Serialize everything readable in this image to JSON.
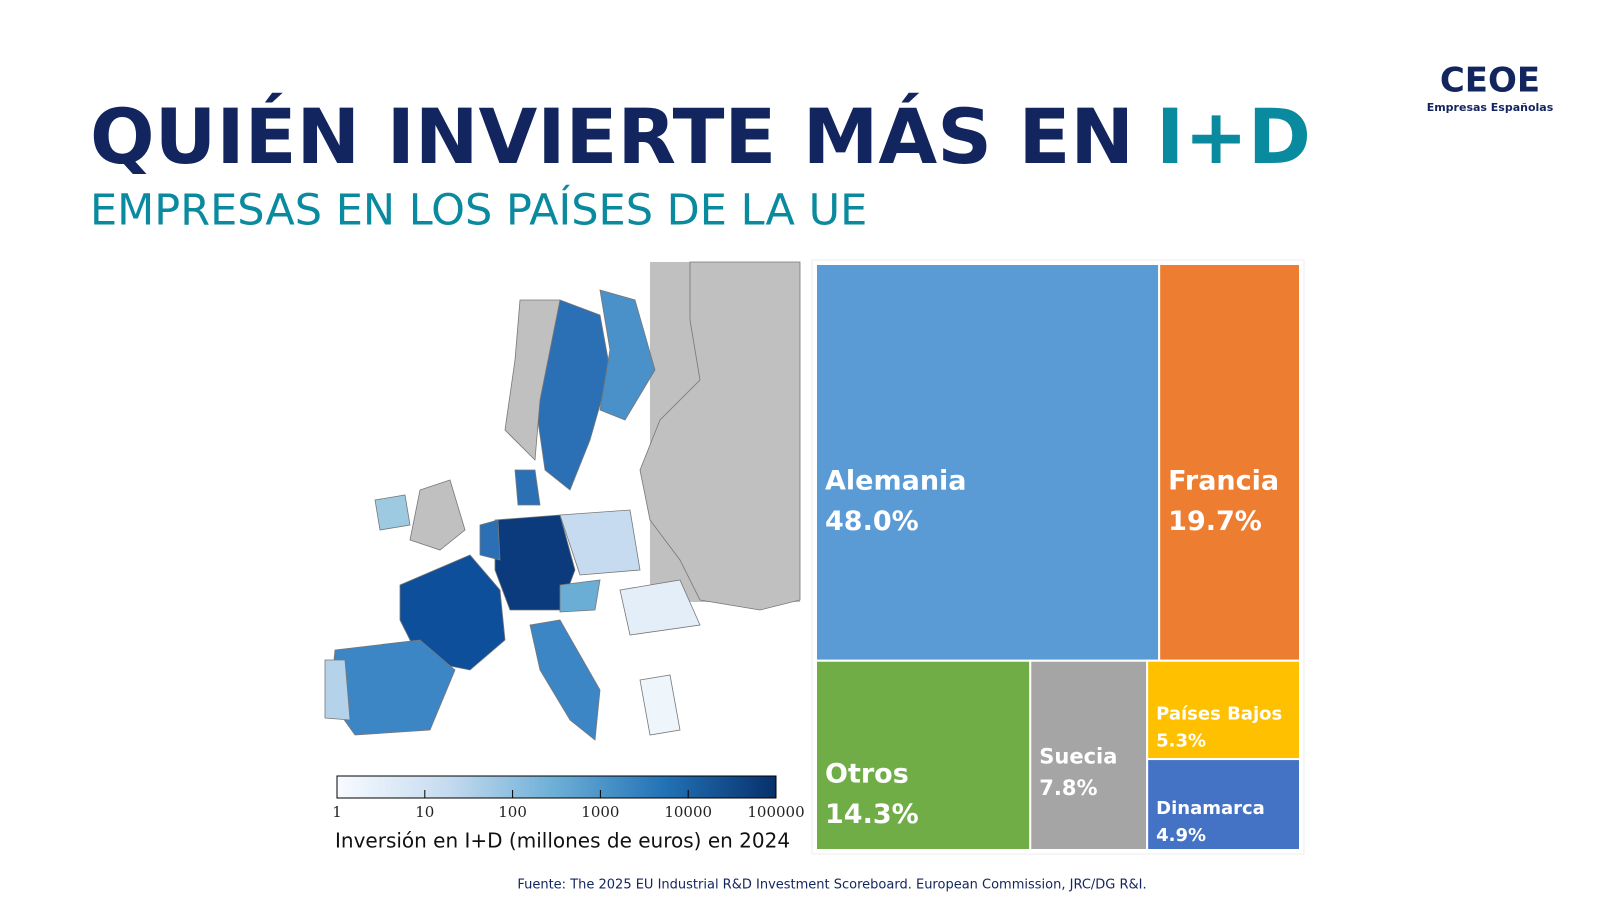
{
  "header": {
    "title": "QUIÉN INVIERTE MÁS EN",
    "title_highlight": "I+D",
    "subtitle": "EMPRESAS EN LOS PAÍSES DE LA UE"
  },
  "logo": {
    "name": "CEOE",
    "tagline": "Empresas Españolas"
  },
  "source": "Fuente: The 2025 EU Industrial R&D Investment Scoreboard. European Commission, JRC/DG R&I.",
  "chart_data": [
    {
      "type": "treemap",
      "categories": [
        "Alemania",
        "Francia",
        "Otros",
        "Suecia",
        "Países Bajos",
        "Dinamarca"
      ],
      "values": [
        48.0,
        19.7,
        14.3,
        7.8,
        5.3,
        4.9
      ],
      "value_labels": [
        "48.0%",
        "19.7%",
        "14.3%",
        "7.8%",
        "5.3%",
        "4.9%"
      ],
      "colors": [
        "#5b9bd5",
        "#ed7d31",
        "#70ad47",
        "#a5a5a5",
        "#ffc000",
        "#4472c4"
      ]
    },
    {
      "type": "colorbar",
      "xlabel": "Inversión en I+D (millones de euros) en 2024",
      "xlim": [
        1,
        100000
      ],
      "xticks": [
        1,
        10,
        100,
        1000,
        10000,
        100000
      ],
      "log_scale": true,
      "colors": [
        "#f7fbff",
        "#c6dbef",
        "#6baed6",
        "#2171b5",
        "#08306b"
      ]
    }
  ]
}
